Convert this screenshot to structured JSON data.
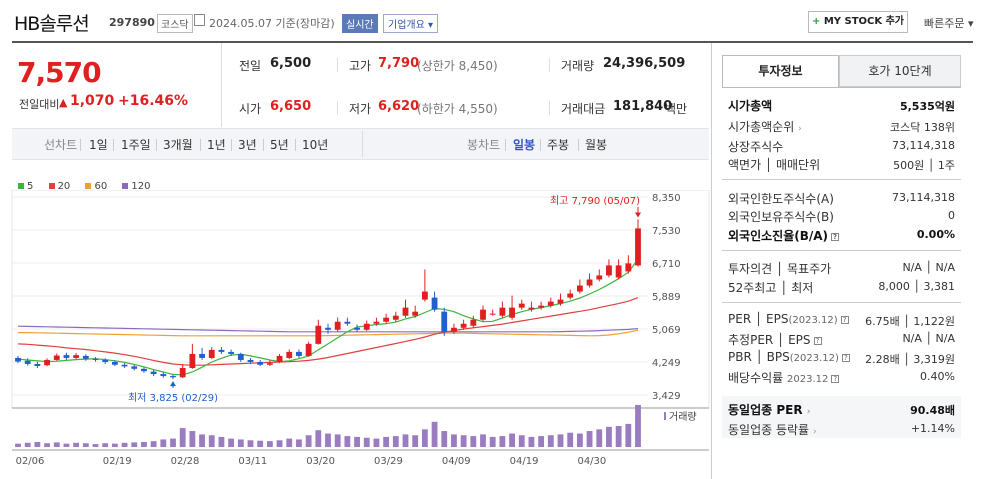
{
  "header": {
    "title": "HB솔루션",
    "code": "297890",
    "market": "코스닥",
    "date_text": "2024.05.07 기준(장마감)",
    "realtime": "실시간",
    "overview": "기업개요 ▾",
    "mystock_plus": "+",
    "mystock": "MY STOCK 추가",
    "quick_order": "빠른주문 ▾"
  },
  "price": {
    "current": "7,570",
    "change_label": "전일대비",
    "change_arrow": "▲",
    "change": "1,070",
    "change_pct": "+16.46%"
  },
  "summary": {
    "prev_label": "전일",
    "prev": "6,500",
    "high_label": "고가",
    "high": "7,790",
    "upper_limit": "(상한가 8,450)",
    "volume_label": "거래량",
    "volume": "24,396,509",
    "open_label": "시가",
    "open": "6,650",
    "low_label": "저가",
    "low": "6,620",
    "lower_limit": "(하한가 4,550)",
    "amount_label": "거래대금",
    "amount": "181,840",
    "amount_unit": "백만"
  },
  "period_bar": {
    "line_label": "선차트",
    "line_periods": [
      "1일",
      "1주일",
      "3개월",
      "1년",
      "3년",
      "5년",
      "10년"
    ],
    "candle_label": "봉차트",
    "candle_periods": [
      "일봉",
      "주봉",
      "월봉"
    ],
    "candle_active": "일봉"
  },
  "chart_data": {
    "type": "candlestick",
    "legend": [
      {
        "name": "5",
        "color": "#3cb43c"
      },
      {
        "name": "20",
        "color": "#e04040"
      },
      {
        "name": "60",
        "color": "#f0a030"
      },
      {
        "name": "120",
        "color": "#8a6ac0"
      }
    ],
    "y_ticks": [
      "8,350",
      "7,530",
      "6,710",
      "5,889",
      "5,069",
      "4,249",
      "3,429"
    ],
    "ylim": [
      3429,
      8350
    ],
    "x_ticks": [
      "02/06",
      "02/19",
      "02/28",
      "03/11",
      "03/20",
      "03/29",
      "04/09",
      "04/19",
      "04/30"
    ],
    "high_annotation": "최고 7,790 (05/07)",
    "low_annotation": "최저 3,825 (02/29)",
    "volume_label": "거래량",
    "up_color": "#e02020",
    "down_color": "#2060d0",
    "candles": [
      [
        4350,
        4260,
        4400,
        4220
      ],
      [
        4280,
        4200,
        4340,
        4160
      ],
      [
        4200,
        4150,
        4260,
        4100
      ],
      [
        4170,
        4300,
        4340,
        4140
      ],
      [
        4300,
        4410,
        4460,
        4280
      ],
      [
        4420,
        4350,
        4480,
        4300
      ],
      [
        4350,
        4420,
        4470,
        4320
      ],
      [
        4400,
        4330,
        4440,
        4280
      ],
      [
        4330,
        4300,
        4370,
        4260
      ],
      [
        4300,
        4250,
        4340,
        4200
      ],
      [
        4250,
        4180,
        4290,
        4150
      ],
      [
        4180,
        4140,
        4220,
        4100
      ],
      [
        4140,
        4080,
        4180,
        4040
      ],
      [
        4080,
        4020,
        4120,
        3980
      ],
      [
        4010,
        3950,
        4050,
        3900
      ],
      [
        3950,
        3900,
        3990,
        3860
      ],
      [
        3900,
        3870,
        3930,
        3825
      ],
      [
        3870,
        4100,
        4200,
        3850
      ],
      [
        4100,
        4450,
        4700,
        4080
      ],
      [
        4450,
        4350,
        4600,
        4300
      ],
      [
        4350,
        4550,
        4620,
        4320
      ],
      [
        4550,
        4500,
        4620,
        4450
      ],
      [
        4500,
        4450,
        4560,
        4400
      ],
      [
        4450,
        4300,
        4480,
        4250
      ],
      [
        4300,
        4250,
        4350,
        4200
      ],
      [
        4250,
        4180,
        4300,
        4150
      ],
      [
        4180,
        4220,
        4300,
        4150
      ],
      [
        4250,
        4400,
        4450,
        4220
      ],
      [
        4350,
        4500,
        4560,
        4320
      ],
      [
        4500,
        4400,
        4560,
        4350
      ],
      [
        4400,
        4700,
        4750,
        4380
      ],
      [
        4700,
        5150,
        5300,
        4680
      ],
      [
        5100,
        5050,
        5200,
        4950
      ],
      [
        5050,
        5250,
        5350,
        5000
      ],
      [
        5250,
        5200,
        5350,
        5150
      ],
      [
        5100,
        5050,
        5180,
        5000
      ],
      [
        5050,
        5200,
        5280,
        5020
      ],
      [
        5200,
        5250,
        5350,
        5150
      ],
      [
        5250,
        5350,
        5450,
        5200
      ],
      [
        5300,
        5400,
        5500,
        5250
      ],
      [
        5400,
        5600,
        5800,
        5350
      ],
      [
        5400,
        5500,
        5650,
        5350
      ],
      [
        5800,
        6000,
        6550,
        5750
      ],
      [
        5850,
        5550,
        6000,
        5500
      ],
      [
        5500,
        5000,
        5600,
        4900
      ],
      [
        5000,
        5100,
        5200,
        4950
      ],
      [
        5100,
        5200,
        5300,
        5050
      ],
      [
        5150,
        5300,
        5400,
        5100
      ],
      [
        5300,
        5550,
        5650,
        5250
      ],
      [
        5450,
        5450,
        5550,
        5400
      ],
      [
        5400,
        5600,
        5750,
        5350
      ],
      [
        5350,
        5600,
        5900,
        5300
      ],
      [
        5600,
        5700,
        5800,
        5550
      ],
      [
        5550,
        5600,
        5750,
        5500
      ],
      [
        5600,
        5650,
        5750,
        5550
      ],
      [
        5650,
        5750,
        5850,
        5600
      ],
      [
        5700,
        5800,
        5950,
        5650
      ],
      [
        5850,
        5950,
        6050,
        5800
      ],
      [
        6000,
        6150,
        6300,
        5950
      ],
      [
        6150,
        6300,
        6450,
        6100
      ],
      [
        6300,
        6400,
        6550,
        6250
      ],
      [
        6400,
        6650,
        6800,
        6350
      ],
      [
        6350,
        6650,
        6800,
        6300
      ],
      [
        6500,
        6700,
        6900,
        6450
      ],
      [
        6650,
        7570,
        7790,
        6620
      ]
    ],
    "volume": [
      8,
      10,
      12,
      9,
      11,
      8,
      10,
      9,
      7,
      9,
      8,
      10,
      11,
      12,
      14,
      18,
      20,
      45,
      38,
      30,
      28,
      24,
      20,
      18,
      16,
      15,
      14,
      16,
      20,
      18,
      28,
      40,
      32,
      30,
      26,
      24,
      22,
      20,
      24,
      26,
      30,
      28,
      42,
      60,
      38,
      30,
      28,
      26,
      30,
      24,
      26,
      32,
      28,
      24,
      26,
      28,
      30,
      34,
      32,
      38,
      42,
      48,
      50,
      55,
      100
    ],
    "ma5": [
      4320,
      4300,
      4280,
      4260,
      4270,
      4290,
      4310,
      4320,
      4330,
      4310,
      4280,
      4240,
      4190,
      4130,
      4060,
      4000,
      3940,
      3930,
      4000,
      4120,
      4250,
      4340,
      4420,
      4440,
      4400,
      4350,
      4300,
      4260,
      4280,
      4330,
      4400,
      4550,
      4700,
      4850,
      5000,
      5120,
      5150,
      5180,
      5200,
      5240,
      5320,
      5380,
      5480,
      5580,
      5560,
      5500,
      5400,
      5320,
      5250,
      5260,
      5340,
      5430,
      5500,
      5560,
      5600,
      5650,
      5700,
      5760,
      5840,
      5940,
      6050,
      6180,
      6320,
      6480,
      6800
    ],
    "ma20": [
      4700,
      4690,
      4670,
      4650,
      4630,
      4600,
      4580,
      4560,
      4530,
      4500,
      4470,
      4430,
      4390,
      4340,
      4290,
      4240,
      4200,
      4180,
      4170,
      4170,
      4180,
      4190,
      4200,
      4210,
      4220,
      4230,
      4240,
      4250,
      4260,
      4270,
      4290,
      4320,
      4360,
      4410,
      4460,
      4510,
      4560,
      4610,
      4660,
      4710,
      4760,
      4810,
      4870,
      4940,
      4990,
      5030,
      5070,
      5100,
      5130,
      5160,
      5190,
      5230,
      5270,
      5310,
      5350,
      5390,
      5430,
      5470,
      5510,
      5550,
      5600,
      5650,
      5700,
      5760,
      5850
    ],
    "ma60": [
      4980,
      4980,
      4975,
      4970,
      4965,
      4960,
      4955,
      4950,
      4945,
      4940,
      4935,
      4930,
      4925,
      4920,
      4915,
      4910,
      4905,
      4900,
      4900,
      4900,
      4900,
      4900,
      4900,
      4900,
      4900,
      4900,
      4900,
      4900,
      4900,
      4900,
      4900,
      4900,
      4905,
      4910,
      4915,
      4920,
      4925,
      4930,
      4935,
      4940,
      4945,
      4950,
      4955,
      4960,
      4965,
      4965,
      4965,
      4960,
      4955,
      4950,
      4945,
      4940,
      4935,
      4930,
      4925,
      4920,
      4915,
      4910,
      4905,
      4900,
      4905,
      4920,
      4950,
      4990,
      5040
    ],
    "ma120": [
      5140,
      5135,
      5130,
      5125,
      5120,
      5115,
      5110,
      5105,
      5100,
      5095,
      5090,
      5085,
      5080,
      5075,
      5070,
      5065,
      5060,
      5055,
      5050,
      5045,
      5040,
      5035,
      5030,
      5025,
      5020,
      5015,
      5010,
      5005,
      5000,
      5000,
      5000,
      5000,
      5000,
      5000,
      5000,
      5000,
      5000,
      5000,
      5000,
      5000,
      5000,
      5000,
      5000,
      5000,
      5000,
      5000,
      5000,
      5000,
      5000,
      5000,
      5000,
      5000,
      5000,
      5000,
      5000,
      5000,
      5005,
      5010,
      5015,
      5020,
      5030,
      5040,
      5050,
      5060,
      5080
    ]
  },
  "right_panel": {
    "tab_info": "투자정보",
    "tab_hoga": "호가 10단계",
    "rows": {
      "market_cap_label": "시가총액",
      "market_cap": "5,535억원",
      "market_cap_rank_label": "시가총액순위",
      "market_cap_rank": "코스닥 138위",
      "shares_label": "상장주식수",
      "shares": "73,114,318",
      "face_label": "액면가 │ 매매단위",
      "face": "500원 │ 1주",
      "foreign_limit_label": "외국인한도주식수(A)",
      "foreign_limit": "73,114,318",
      "foreign_hold_label": "외국인보유주식수(B)",
      "foreign_hold": "0",
      "foreign_ratio_label": "외국인소진율(B/A)",
      "foreign_ratio": "0.00%",
      "opinion_label": "투자의견 │ 목표주가",
      "opinion": "N/A │ N/A",
      "w52_label": "52주최고 │ 최저",
      "w52": "8,000 │ 3,381",
      "per_label": "PER │ EPS",
      "per_year": "(2023.12)",
      "per": "6.75배 │ 1,122원",
      "est_per_label": "추정PER │ EPS",
      "est_per": "N/A │ N/A",
      "pbr_label": "PBR │ BPS",
      "pbr_year": "(2023.12)",
      "pbr": "2.28배 │ 3,319원",
      "dividend_label": "배당수익률",
      "dividend_year": "2023.12",
      "dividend": "0.40%",
      "peer_per_label": "동일업종 PER",
      "peer_per": "90.48배",
      "peer_rate_label": "동일업종 등락률",
      "peer_rate": "+1.14%"
    }
  }
}
